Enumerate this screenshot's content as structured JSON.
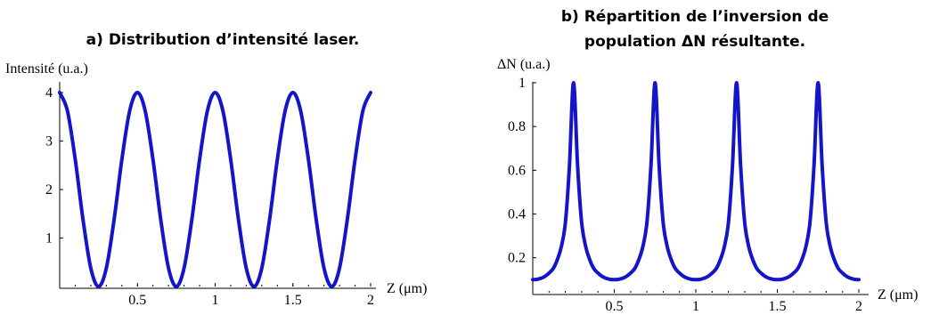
{
  "chart_data": [
    {
      "type": "line",
      "title": "a) Distribution d’intensité laser.",
      "xlabel": "Z (μm)",
      "ylabel": "Intensité (u.a.)",
      "xlim": [
        0,
        2
      ],
      "ylim": [
        0,
        4
      ],
      "x_ticks": [
        "0.5",
        "1",
        "1.5",
        "2"
      ],
      "y_ticks": [
        "1",
        "2",
        "3",
        "4"
      ],
      "series": [
        {
          "color": "#1515c8",
          "x": [
            0,
            0.05,
            0.1,
            0.15,
            0.2,
            0.25,
            0.3,
            0.35,
            0.4,
            0.45,
            0.5,
            0.55,
            0.6,
            0.65,
            0.7,
            0.75,
            0.8,
            0.85,
            0.9,
            0.95,
            1,
            1.05,
            1.1,
            1.15,
            1.2,
            1.25,
            1.3,
            1.35,
            1.4,
            1.45,
            1.5,
            1.55,
            1.6,
            1.65,
            1.7,
            1.75,
            1.8,
            1.85,
            1.9,
            1.95,
            2
          ],
          "y": [
            4,
            3.62,
            2.62,
            1.38,
            0.38,
            0,
            0.38,
            1.38,
            2.62,
            3.62,
            4,
            3.62,
            2.62,
            1.38,
            0.38,
            0,
            0.38,
            1.38,
            2.62,
            3.62,
            4,
            3.62,
            2.62,
            1.38,
            0.38,
            0,
            0.38,
            1.38,
            2.62,
            3.62,
            4,
            3.62,
            2.62,
            1.38,
            0.38,
            0,
            0.38,
            1.38,
            2.62,
            3.62,
            4
          ]
        }
      ]
    },
    {
      "type": "line",
      "title": "b) Répartition de l’inversion de population ΔN résultante.",
      "title_lines": [
        "b) Répartition de l’inversion de",
        "population ΔN résultante."
      ],
      "xlabel": "Z (μm)",
      "ylabel": "ΔN (u.a.)",
      "xlim": [
        0,
        2
      ],
      "ylim": [
        0.04,
        1
      ],
      "x_ticks": [
        "0.5",
        "1",
        "1.5",
        "2"
      ],
      "y_ticks": [
        "0.2",
        "0.4",
        "0.6",
        "0.8",
        "1"
      ],
      "series": [
        {
          "color": "#1515c8",
          "x": [
            0,
            0.025,
            0.05,
            0.075,
            0.1,
            0.125,
            0.15,
            0.175,
            0.2,
            0.225,
            0.25,
            0.275,
            0.3,
            0.325,
            0.35,
            0.375,
            0.4,
            0.425,
            0.45,
            0.475,
            0.5,
            0.525,
            0.55,
            0.575,
            0.6,
            0.625,
            0.65,
            0.675,
            0.7,
            0.725,
            0.75,
            0.775,
            0.8,
            0.825,
            0.85,
            0.875,
            0.9,
            0.925,
            0.95,
            0.975,
            1,
            1.025,
            1.05,
            1.075,
            1.1,
            1.125,
            1.15,
            1.175,
            1.2,
            1.225,
            1.25,
            1.275,
            1.3,
            1.325,
            1.35,
            1.375,
            1.4,
            1.425,
            1.45,
            1.475,
            1.5,
            1.525,
            1.55,
            1.575,
            1.6,
            1.625,
            1.65,
            1.675,
            1.7,
            1.725,
            1.75,
            1.775,
            1.8,
            1.825,
            1.85,
            1.875,
            1.9,
            1.925,
            1.95,
            1.975,
            2
          ],
          "y": [
            0.1,
            0.101,
            0.106,
            0.115,
            0.13,
            0.15,
            0.19,
            0.25,
            0.36,
            0.62,
            1,
            0.62,
            0.36,
            0.25,
            0.19,
            0.15,
            0.13,
            0.115,
            0.106,
            0.101,
            0.1,
            0.101,
            0.106,
            0.115,
            0.13,
            0.15,
            0.19,
            0.25,
            0.36,
            0.62,
            1,
            0.62,
            0.36,
            0.25,
            0.19,
            0.15,
            0.13,
            0.115,
            0.106,
            0.101,
            0.1,
            0.101,
            0.106,
            0.115,
            0.13,
            0.15,
            0.19,
            0.25,
            0.36,
            0.62,
            1,
            0.62,
            0.36,
            0.25,
            0.19,
            0.15,
            0.13,
            0.115,
            0.106,
            0.101,
            0.1,
            0.101,
            0.106,
            0.115,
            0.13,
            0.15,
            0.19,
            0.25,
            0.36,
            0.62,
            1,
            0.62,
            0.36,
            0.25,
            0.19,
            0.15,
            0.13,
            0.115,
            0.106,
            0.101,
            0.1
          ]
        }
      ]
    }
  ]
}
